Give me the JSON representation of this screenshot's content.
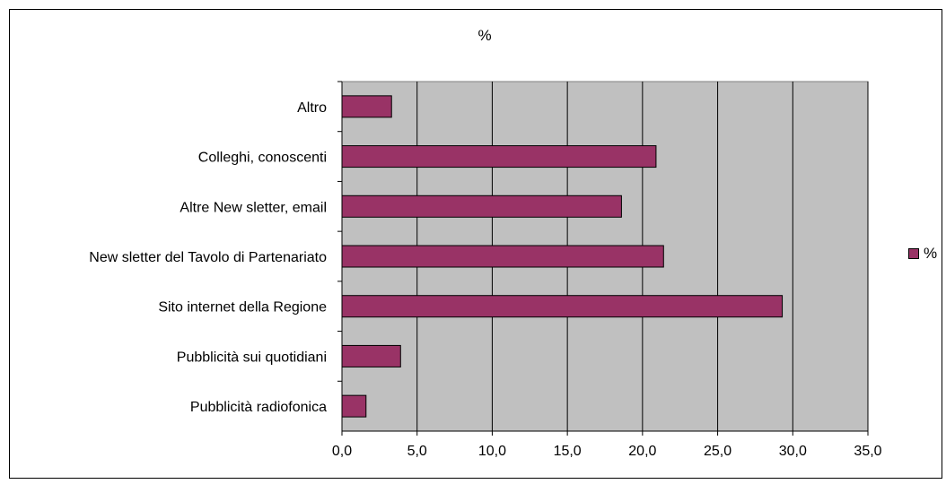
{
  "chart_data": {
    "type": "bar",
    "orientation": "horizontal",
    "title": "%",
    "categories": [
      "Altro",
      "Colleghi, conoscenti",
      "Altre New sletter, email",
      "New sletter del Tavolo di Partenariato",
      "Sito internet della Regione",
      "Pubblicità sui quotidiani",
      "Pubblicità radiofonica"
    ],
    "series": [
      {
        "name": "%",
        "values": [
          3.3,
          20.9,
          18.6,
          21.4,
          29.3,
          3.9,
          1.6
        ]
      }
    ],
    "xlim": [
      0,
      35
    ],
    "xticks": [
      "0,0",
      "5,0",
      "10,0",
      "15,0",
      "20,0",
      "25,0",
      "30,0",
      "35,0"
    ],
    "grid": "vertical",
    "legend_position": "right",
    "colors": {
      "bar": "#993366",
      "plot_area": "#c0c0c0"
    }
  }
}
